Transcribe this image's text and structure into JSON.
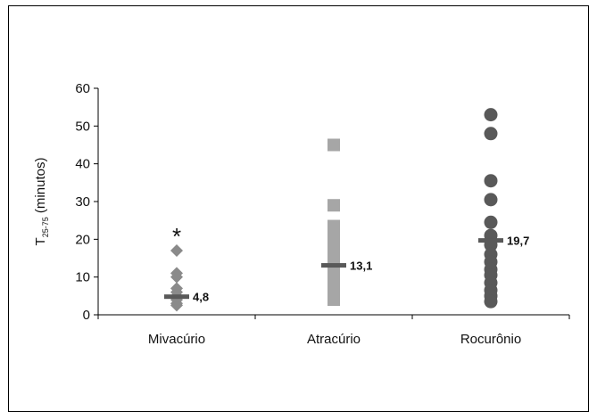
{
  "chart_data": {
    "type": "scatter",
    "categories": [
      "Mivacúrio",
      "Atracúrio",
      "Rocurônio"
    ],
    "ylabel": {
      "main": "T",
      "sub": "25-75",
      "suffix": " (minutos)"
    },
    "ylim": [
      0,
      60
    ],
    "yticks": [
      0,
      10,
      20,
      30,
      40,
      50,
      60
    ],
    "grid": false,
    "series": [
      {
        "marker": "diamond",
        "color": "#8a8a8a",
        "values": [
          17,
          11,
          10,
          7,
          6,
          5,
          4,
          3,
          2.5
        ],
        "median": 4.8,
        "median_label": "4,8",
        "annotation": "*"
      },
      {
        "marker": "square",
        "color": "#a6a6a6",
        "values": [
          45,
          29,
          23.5,
          21.5,
          19.5,
          17,
          15,
          13,
          11,
          9,
          7,
          5,
          4
        ],
        "median": 13.1,
        "median_label": "13,1"
      },
      {
        "marker": "circle",
        "color": "#595959",
        "values": [
          53,
          48,
          35.5,
          30.5,
          24.5,
          21,
          18.5,
          16,
          14,
          12,
          10.5,
          8.5,
          6.5,
          5,
          3.5
        ],
        "median": 19.7,
        "median_label": "19,7"
      }
    ],
    "median_color": "#595959"
  }
}
